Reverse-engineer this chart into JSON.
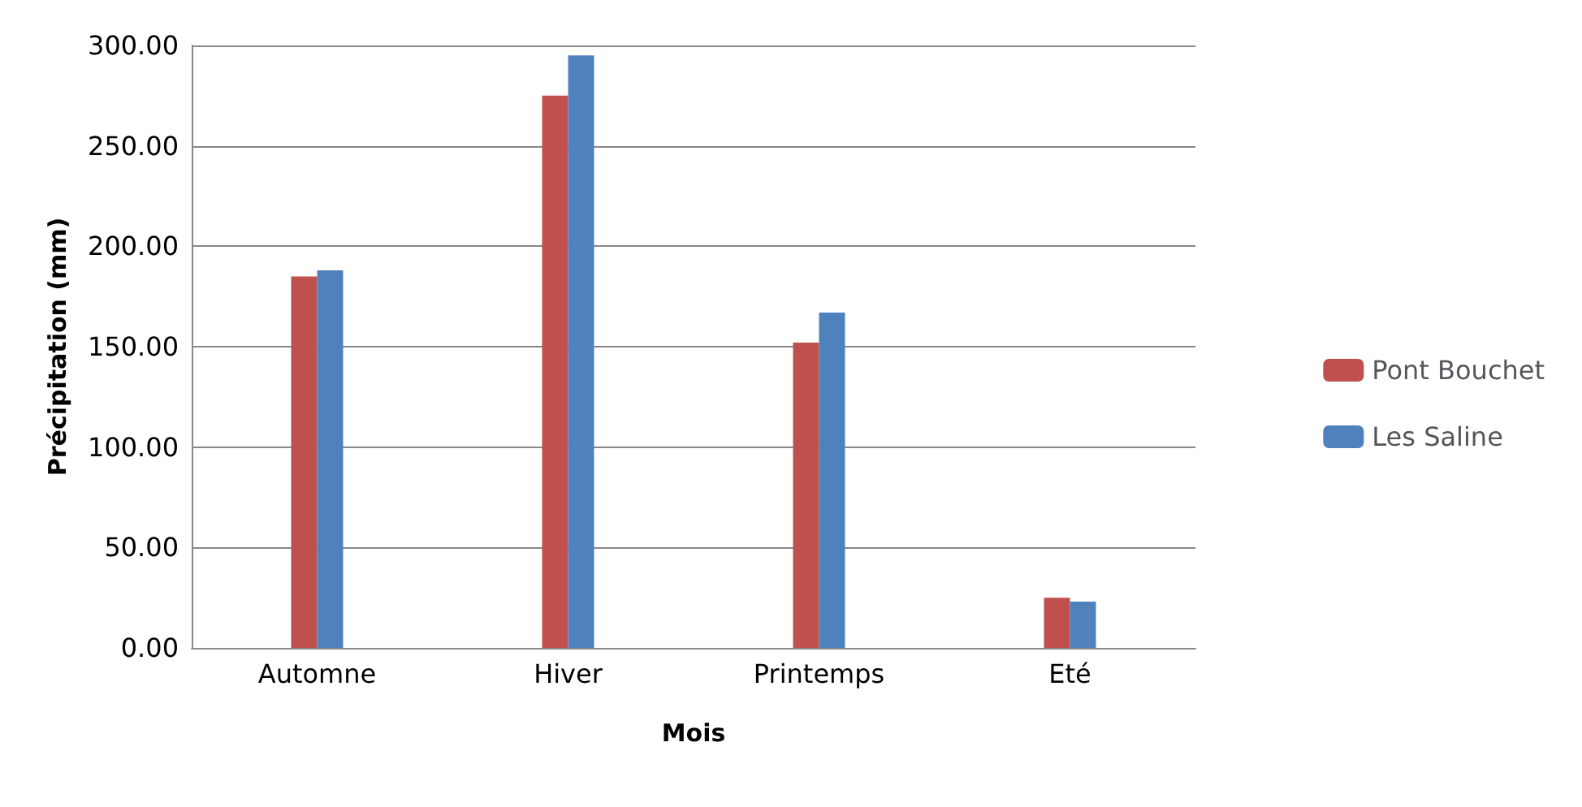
{
  "chart_data": {
    "type": "bar",
    "xlabel": "Mois",
    "ylabel": "Précipitation (mm)",
    "categories": [
      "Automne",
      "Hiver",
      "Printemps",
      "Eté"
    ],
    "series": [
      {
        "name": "Pont Bouchet",
        "color": "#c0504d",
        "values": [
          185,
          275,
          152,
          25
        ]
      },
      {
        "name": "Les Saline",
        "color": "#4f81bd",
        "values": [
          188,
          295,
          167,
          23
        ]
      }
    ],
    "ylim": [
      0,
      300
    ],
    "yticks": [
      {
        "value": 0,
        "label": "0.00"
      },
      {
        "value": 50,
        "label": "50.00"
      },
      {
        "value": 100,
        "label": "100.00"
      },
      {
        "value": 150,
        "label": "150.00"
      },
      {
        "value": 200,
        "label": "200.00"
      },
      {
        "value": 250,
        "label": "250.00"
      },
      {
        "value": 300,
        "label": "300.00"
      }
    ],
    "grid": "y",
    "legend": "right"
  }
}
